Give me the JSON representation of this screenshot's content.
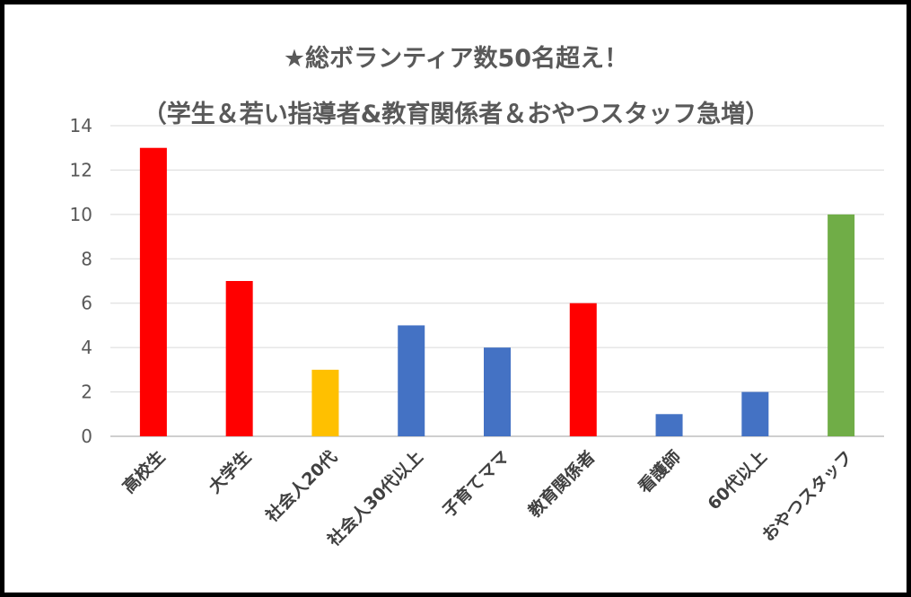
{
  "chart_data": {
    "type": "bar",
    "title": "★総ボランティア数50名超え！",
    "subtitle": "（学生＆若い指導者&教育関係者＆おやつスタッフ急増）",
    "xlabel": "",
    "ylabel": "",
    "ylim": [
      0,
      14
    ],
    "yticks": [
      "0",
      "2",
      "4",
      "6",
      "8",
      "10",
      "12",
      "14"
    ],
    "grid": true,
    "categories": [
      "高校生",
      "大学生",
      "社会人20代",
      "社会人30代以上",
      "子育てママ",
      "教育関係者",
      "看護師",
      "60代以上",
      "おやつスタッフ"
    ],
    "values": [
      13,
      7,
      3,
      5,
      4,
      6,
      1,
      2,
      10
    ],
    "colors": [
      "#ff0000",
      "#ff0000",
      "#ffc000",
      "#4472c4",
      "#4472c4",
      "#ff0000",
      "#4472c4",
      "#4472c4",
      "#70ad47"
    ]
  }
}
